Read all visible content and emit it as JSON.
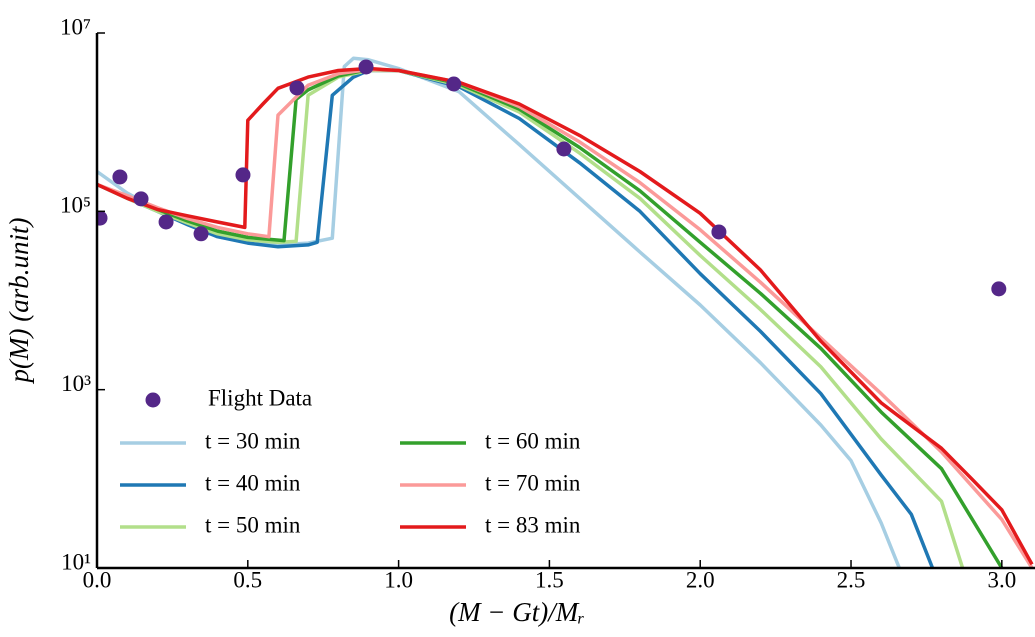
{
  "chart_data": {
    "type": "line",
    "xlabel": "(M − Gt)/Mᵣ",
    "ylabel": "p(M)  (arb.unit)",
    "xlim": [
      0,
      3.11
    ],
    "ylim": [
      10,
      10000000
    ],
    "yscale": "log",
    "legend": "lower left",
    "xticks": [
      {
        "value": 0,
        "label": "0.0"
      },
      {
        "value": 0.5,
        "label": "0.5"
      },
      {
        "value": 1,
        "label": "1.0"
      },
      {
        "value": 1.5,
        "label": "1.5"
      },
      {
        "value": 2,
        "label": "2.0"
      },
      {
        "value": 2.5,
        "label": "2.5"
      },
      {
        "value": 3,
        "label": "3.0"
      }
    ],
    "yticks": [
      {
        "value": 10,
        "label": "10¹"
      },
      {
        "value": 1000,
        "label": "10³"
      },
      {
        "value": 100000,
        "label": "10⁵"
      },
      {
        "value": 10000000,
        "label": "10⁷"
      }
    ],
    "scatter": {
      "name": "Flight Data",
      "color": "#542788",
      "x": [
        0.01,
        0.076,
        0.146,
        0.229,
        0.345,
        0.484,
        0.663,
        0.892,
        1.183,
        1.548,
        2.062,
        2.99
      ],
      "values": [
        84000,
        243000,
        138000,
        76000,
        56000,
        256000,
        2420000,
        4160000,
        2680000,
        500000,
        58700,
        13500
      ]
    },
    "series": [
      {
        "name": "t = 30 min",
        "color": "#a6cee3",
        "x": [
          0,
          0.1,
          0.2,
          0.3,
          0.4,
          0.5,
          0.6,
          0.7,
          0.78,
          0.82,
          0.85,
          0.9,
          1.0,
          1.2,
          1.4,
          1.6,
          1.8,
          2.0,
          2.2,
          2.4,
          2.5,
          2.6,
          2.66
        ],
        "values": [
          280000,
          160000,
          105000,
          71000,
          52000,
          45000,
          42000,
          44000,
          50000,
          4200000,
          5200000,
          5000000,
          4000000,
          2200000,
          560000,
          140000,
          35000,
          8900,
          2000,
          400,
          160,
          32,
          10
        ]
      },
      {
        "name": "t = 40 min",
        "color": "#1f78b4",
        "x": [
          0,
          0.1,
          0.2,
          0.3,
          0.4,
          0.5,
          0.6,
          0.7,
          0.73,
          0.78,
          0.85,
          0.9,
          1.0,
          1.2,
          1.4,
          1.6,
          1.8,
          2.0,
          2.2,
          2.4,
          2.6,
          2.7,
          2.77
        ],
        "values": [
          200000,
          140000,
          100000,
          71000,
          52000,
          44000,
          40000,
          42000,
          45000,
          2000000,
          3200000,
          3800000,
          3800000,
          2500000,
          1100000,
          350000,
          100000,
          20000,
          4500,
          900,
          110,
          40,
          10
        ]
      },
      {
        "name": "t = 50 min",
        "color": "#b2df8a",
        "x": [
          0,
          0.1,
          0.2,
          0.3,
          0.4,
          0.5,
          0.6,
          0.66,
          0.7,
          0.8,
          0.9,
          1.0,
          1.2,
          1.4,
          1.6,
          1.8,
          2.0,
          2.2,
          2.4,
          2.6,
          2.8,
          2.87
        ],
        "values": [
          200000,
          140000,
          100000,
          74000,
          56000,
          48000,
          45000,
          46000,
          2000000,
          3200000,
          3800000,
          3800000,
          2600000,
          1300000,
          450000,
          140000,
          32000,
          7900,
          1800,
          280,
          56,
          10
        ]
      },
      {
        "name": "t = 60 min",
        "color": "#33a02c",
        "x": [
          0,
          0.1,
          0.2,
          0.3,
          0.4,
          0.5,
          0.62,
          0.66,
          0.7,
          0.8,
          0.9,
          1.0,
          1.2,
          1.4,
          1.6,
          1.8,
          2.0,
          2.2,
          2.4,
          2.6,
          2.8,
          3.0
        ],
        "values": [
          200000,
          145000,
          105000,
          78000,
          60000,
          51000,
          47000,
          1800000,
          2300000,
          3300000,
          3900000,
          3800000,
          2700000,
          1400000,
          520000,
          170000,
          45000,
          12000,
          2900,
          560,
          130,
          10
        ]
      },
      {
        "name": "t = 70 min",
        "color": "#fb9a99",
        "x": [
          0,
          0.1,
          0.2,
          0.3,
          0.4,
          0.5,
          0.57,
          0.6,
          0.7,
          0.8,
          0.9,
          1.0,
          1.2,
          1.4,
          1.6,
          1.8,
          2.0,
          2.2,
          2.4,
          2.6,
          2.8,
          3.0,
          3.1
        ],
        "values": [
          200000,
          150000,
          110000,
          83000,
          66000,
          56000,
          52000,
          1200000,
          2600000,
          3500000,
          3900000,
          3800000,
          2800000,
          1500000,
          600000,
          210000,
          62000,
          16000,
          3800,
          900,
          200,
          35,
          10
        ]
      },
      {
        "name": "t = 83 min",
        "color": "#e31a1c",
        "x": [
          0,
          0.1,
          0.2,
          0.3,
          0.4,
          0.49,
          0.5,
          0.55,
          0.6,
          0.7,
          0.8,
          0.9,
          1.0,
          1.2,
          1.4,
          1.6,
          1.8,
          2.0,
          2.2,
          2.4,
          2.6,
          2.8,
          2.9,
          3.0,
          3.1
        ],
        "values": [
          200000,
          140000,
          105000,
          89000,
          76000,
          66000,
          1050000,
          1600000,
          2400000,
          3200000,
          3800000,
          4000000,
          3800000,
          2800000,
          1600000,
          710000,
          280000,
          95000,
          22000,
          3500,
          710,
          220,
          100,
          45,
          11
        ]
      }
    ]
  }
}
